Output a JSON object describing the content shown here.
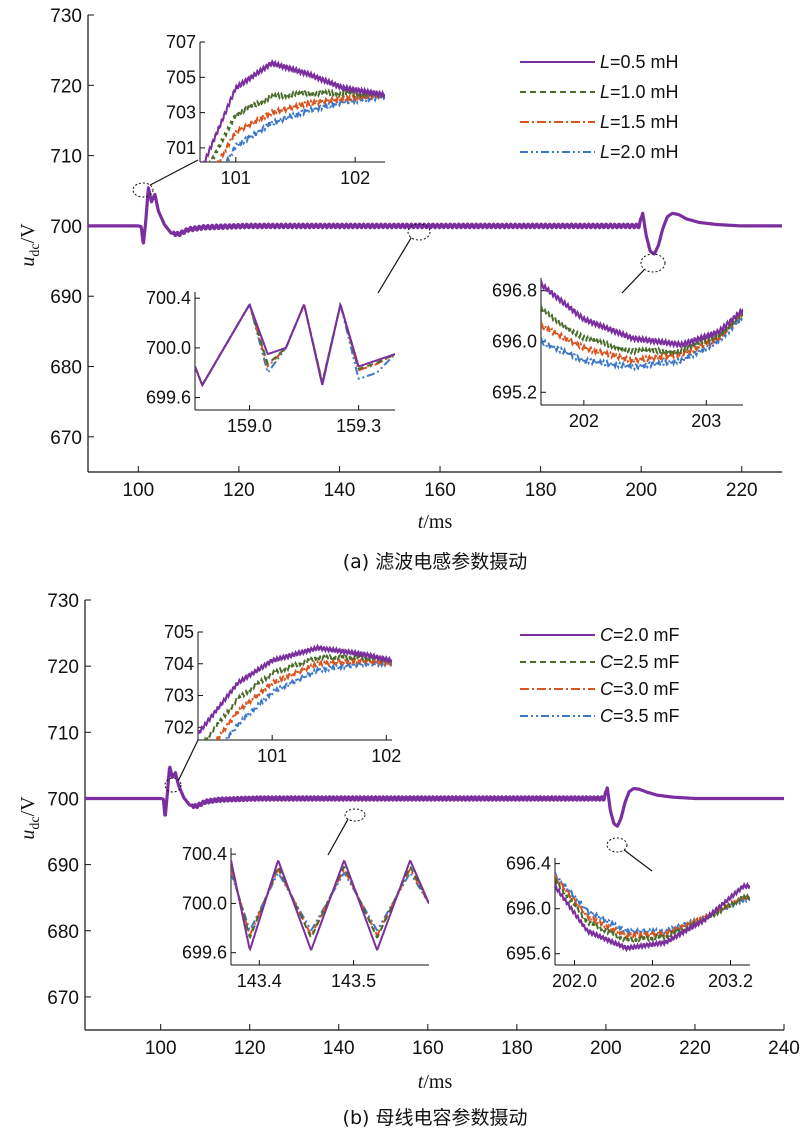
{
  "chart_data": [
    {
      "type": "line",
      "caption": "(a) 滤波电感参数摄动",
      "xlabel": "t/ms",
      "ylabel": "u_dc/V",
      "xlim": [
        90,
        228
      ],
      "ylim": [
        665,
        730
      ],
      "xticks": [
        "100",
        "120",
        "140",
        "160",
        "180",
        "200",
        "220"
      ],
      "yticks": [
        "670",
        "680",
        "690",
        "700",
        "710",
        "720",
        "730"
      ],
      "legend_position": "top-right",
      "series": [
        {
          "name": "L=0.5 mH",
          "legend_prefix": "L",
          "legend_value": "=0.5 mH",
          "color": "#7b2f9e",
          "dash": "solid"
        },
        {
          "name": "L=1.0 mH",
          "legend_prefix": "L",
          "legend_value": "=1.0 mH",
          "color": "#4a6b2a",
          "dash": "dashed"
        },
        {
          "name": "L=1.5 mH",
          "legend_prefix": "L",
          "legend_value": "=1.5 mH",
          "color": "#d9541e",
          "dash": "dashdot"
        },
        {
          "name": "L=2.0 mH",
          "legend_prefix": "L",
          "legend_value": "=2.0 mH",
          "color": "#3b78c9",
          "dash": "dashdotdot"
        }
      ],
      "main_trace": {
        "x": [
          90,
          100,
          100.6,
          101,
          101.5,
          102,
          102.6,
          103.3,
          104,
          105.2,
          106.5,
          108,
          110,
          113,
          117,
          122,
          130,
          145,
          165,
          185,
          199.6,
          200.3,
          201,
          201.8,
          202.6,
          203.4,
          204.3,
          205.2,
          206.2,
          207.5,
          209,
          211.5,
          215,
          220,
          228
        ],
        "y": [
          700,
          700,
          699.9,
          697.3,
          700.8,
          705.5,
          703.4,
          704.5,
          702.1,
          700.2,
          699.0,
          698.8,
          699.5,
          699.8,
          699.9,
          700,
          700,
          700,
          700,
          700,
          700,
          701.8,
          698.6,
          696.4,
          696.0,
          697.2,
          699.6,
          701.3,
          701.8,
          701.6,
          701,
          700.5,
          700.2,
          700,
          700
        ]
      },
      "insets": [
        {
          "xlim": [
            100.7,
            102.25
          ],
          "ylim": [
            700.2,
            707
          ],
          "xticks": [
            "101",
            "102"
          ],
          "yticks": [
            "701",
            "703",
            "705",
            "707"
          ],
          "series_values": [
            {
              "x": [
                100.7,
                101.0,
                101.3,
                101.6,
                101.9,
                102.25
              ],
              "y": [
                699.6,
                704.4,
                705.8,
                705.2,
                704.4,
                704.0
              ]
            },
            {
              "x": [
                100.7,
                101.0,
                101.3,
                101.6,
                101.9,
                102.25
              ],
              "y": [
                699.0,
                702.9,
                703.9,
                704.1,
                704.1,
                704.0
              ]
            },
            {
              "x": [
                100.7,
                101.0,
                101.3,
                101.6,
                101.9,
                102.25
              ],
              "y": [
                698.4,
                701.9,
                703.0,
                703.5,
                703.8,
                704.0
              ]
            },
            {
              "x": [
                100.7,
                101.0,
                101.3,
                101.6,
                101.9,
                102.25
              ],
              "y": [
                697.6,
                701.1,
                702.4,
                703.1,
                703.6,
                703.9
              ]
            }
          ]
        },
        {
          "xlim": [
            158.85,
            159.4
          ],
          "ylim": [
            699.5,
            700.45
          ],
          "xticks": [
            "159.0",
            "159.3"
          ],
          "yticks": [
            "699.6",
            "700.0",
            "700.4"
          ],
          "series_values": [
            {
              "x": [
                158.85,
                158.87,
                159.0,
                159.05,
                159.1,
                159.15,
                159.2,
                159.25,
                159.3,
                159.35,
                159.4
              ],
              "y": [
                699.85,
                699.7,
                700.35,
                699.95,
                700.0,
                700.35,
                699.7,
                700.35,
                699.85,
                699.9,
                699.95
              ]
            },
            {
              "x": [
                158.85,
                158.87,
                159.0,
                159.05,
                159.1,
                159.15,
                159.2,
                159.25,
                159.3,
                159.35,
                159.4
              ],
              "y": [
                699.85,
                699.7,
                700.35,
                699.87,
                700.0,
                700.35,
                699.72,
                700.35,
                699.83,
                699.88,
                699.95
              ]
            },
            {
              "x": [
                158.85,
                158.87,
                159.0,
                159.05,
                159.1,
                159.15,
                159.2,
                159.25,
                159.3,
                159.35,
                159.4
              ],
              "y": [
                699.85,
                699.7,
                700.35,
                699.85,
                700.0,
                700.35,
                699.72,
                700.35,
                699.82,
                699.87,
                699.95
              ]
            },
            {
              "x": [
                158.85,
                158.87,
                159.0,
                159.05,
                159.1,
                159.15,
                159.2,
                159.25,
                159.3,
                159.35,
                159.4
              ],
              "y": [
                699.85,
                699.7,
                700.35,
                699.8,
                700.0,
                700.35,
                699.72,
                700.35,
                699.75,
                699.8,
                699.95
              ]
            }
          ]
        },
        {
          "xlim": [
            201.65,
            203.3
          ],
          "ylim": [
            695.0,
            697.0
          ],
          "xticks": [
            "202",
            "203"
          ],
          "yticks": [
            "695.2",
            "696.0",
            "696.8"
          ],
          "series_values": [
            {
              "x": [
                201.65,
                202.0,
                202.4,
                202.8,
                203.1,
                203.3
              ],
              "y": [
                696.9,
                696.35,
                696.05,
                695.95,
                696.15,
                696.5
              ]
            },
            {
              "x": [
                201.65,
                202.0,
                202.4,
                202.8,
                203.1,
                203.3
              ],
              "y": [
                696.5,
                696.05,
                695.85,
                695.85,
                696.1,
                696.45
              ]
            },
            {
              "x": [
                201.65,
                202.0,
                202.4,
                202.8,
                203.1,
                203.3
              ],
              "y": [
                696.25,
                695.9,
                695.7,
                695.8,
                696.05,
                696.45
              ]
            },
            {
              "x": [
                201.65,
                202.0,
                202.4,
                202.8,
                203.1,
                203.3
              ],
              "y": [
                696.0,
                695.7,
                695.6,
                695.7,
                696.0,
                696.4
              ]
            }
          ]
        }
      ]
    },
    {
      "type": "line",
      "caption": "(b) 母线电容参数摄动",
      "xlabel": "t/ms",
      "ylabel": "u_dc/V",
      "xlim": [
        83,
        240
      ],
      "ylim": [
        665,
        730
      ],
      "xticks": [
        "100",
        "120",
        "140",
        "160",
        "180",
        "200",
        "220",
        "240"
      ],
      "yticks": [
        "670",
        "680",
        "690",
        "700",
        "710",
        "720",
        "730"
      ],
      "legend_position": "top-right",
      "series": [
        {
          "name": "C=2.0 mF",
          "legend_prefix": "C",
          "legend_value": "=2.0 mF",
          "color": "#7b2f9e",
          "dash": "solid"
        },
        {
          "name": "C=2.5 mF",
          "legend_prefix": "C",
          "legend_value": "=2.5 mF",
          "color": "#4a6b2a",
          "dash": "dashed"
        },
        {
          "name": "C=3.0 mF",
          "legend_prefix": "C",
          "legend_value": "=3.0 mF",
          "color": "#d9541e",
          "dash": "dashdot"
        },
        {
          "name": "C=3.5 mF",
          "legend_prefix": "C",
          "legend_value": "=3.5 mF",
          "color": "#3b78c9",
          "dash": "dashdotdot"
        }
      ],
      "main_trace": {
        "x": [
          83,
          100,
          100.6,
          101,
          101.5,
          102,
          102.6,
          103.3,
          104,
          105.2,
          106.5,
          108,
          110,
          113,
          117,
          122,
          130,
          145,
          165,
          185,
          199.6,
          200.3,
          201,
          201.8,
          202.6,
          203.4,
          204.3,
          205.2,
          206.2,
          207.5,
          209,
          211.5,
          215,
          220,
          230
        ],
        "y": [
          700,
          700,
          699.9,
          697.1,
          700.8,
          704.9,
          703.2,
          703.9,
          702.0,
          700.1,
          699.0,
          698.8,
          699.5,
          699.8,
          699.9,
          700,
          700,
          700,
          700,
          700,
          700,
          701.6,
          698.2,
          696.2,
          695.8,
          697.0,
          699.4,
          701.0,
          701.5,
          701.4,
          701,
          700.5,
          700.2,
          700,
          700
        ]
      },
      "insets": [
        {
          "xlim": [
            100.35,
            102.05
          ],
          "ylim": [
            701.6,
            705
          ],
          "xticks": [
            "101",
            "102"
          ],
          "yticks": [
            "702",
            "703",
            "704",
            "705"
          ],
          "series_values": [
            {
              "x": [
                100.35,
                100.7,
                101.0,
                101.4,
                101.8,
                102.05
              ],
              "y": [
                701.8,
                703.4,
                704.1,
                704.5,
                704.3,
                704.1
              ]
            },
            {
              "x": [
                100.35,
                100.7,
                101.0,
                101.4,
                101.8,
                102.05
              ],
              "y": [
                701.3,
                702.9,
                703.7,
                704.2,
                704.2,
                704.1
              ]
            },
            {
              "x": [
                100.35,
                100.7,
                101.0,
                101.4,
                101.8,
                102.05
              ],
              "y": [
                700.8,
                702.5,
                703.4,
                704.0,
                704.1,
                704.0
              ]
            },
            {
              "x": [
                100.35,
                100.7,
                101.0,
                101.4,
                101.8,
                102.05
              ],
              "y": [
                700.4,
                702.1,
                703.1,
                703.8,
                704.0,
                704.0
              ]
            }
          ]
        },
        {
          "xlim": [
            143.37,
            143.58
          ],
          "ylim": [
            699.5,
            700.45
          ],
          "xticks": [
            "143.4",
            "143.5"
          ],
          "yticks": [
            "699.6",
            "700.0",
            "700.4"
          ],
          "series_values": [
            {
              "x": [
                143.37,
                143.39,
                143.42,
                143.455,
                143.49,
                143.525,
                143.56,
                143.58
              ],
              "y": [
                700.35,
                699.62,
                700.35,
                699.62,
                700.35,
                699.62,
                700.35,
                700.0
              ]
            },
            {
              "x": [
                143.37,
                143.39,
                143.42,
                143.455,
                143.49,
                143.525,
                143.56,
                143.58
              ],
              "y": [
                700.3,
                699.72,
                700.3,
                699.72,
                700.3,
                699.72,
                700.3,
                700.0
              ]
            },
            {
              "x": [
                143.37,
                143.39,
                143.42,
                143.455,
                143.49,
                143.525,
                143.56,
                143.58
              ],
              "y": [
                700.28,
                699.74,
                700.28,
                699.74,
                700.28,
                699.74,
                700.28,
                700.0
              ]
            },
            {
              "x": [
                143.37,
                143.39,
                143.42,
                143.455,
                143.49,
                143.525,
                143.56,
                143.58
              ],
              "y": [
                700.25,
                699.78,
                700.25,
                699.78,
                700.25,
                699.78,
                700.25,
                700.0
              ]
            }
          ]
        },
        {
          "xlim": [
            201.85,
            203.35
          ],
          "ylim": [
            695.5,
            696.45
          ],
          "xticks": [
            "202.0",
            "202.6",
            "203.2"
          ],
          "yticks": [
            "695.6",
            "696.0",
            "696.4"
          ],
          "series_values": [
            {
              "x": [
                201.85,
                202.1,
                202.4,
                202.7,
                203.0,
                203.3
              ],
              "y": [
                696.2,
                695.8,
                695.65,
                695.7,
                695.9,
                696.2
              ]
            },
            {
              "x": [
                201.85,
                202.1,
                202.4,
                202.7,
                203.0,
                203.3
              ],
              "y": [
                696.25,
                695.88,
                695.72,
                695.75,
                695.9,
                696.1
              ]
            },
            {
              "x": [
                201.85,
                202.1,
                202.4,
                202.7,
                203.0,
                203.3
              ],
              "y": [
                696.28,
                695.93,
                695.76,
                695.78,
                695.92,
                696.1
              ]
            },
            {
              "x": [
                201.85,
                202.1,
                202.4,
                202.7,
                203.0,
                203.3
              ],
              "y": [
                696.3,
                695.98,
                695.8,
                695.8,
                695.92,
                696.08
              ]
            }
          ]
        }
      ]
    }
  ]
}
